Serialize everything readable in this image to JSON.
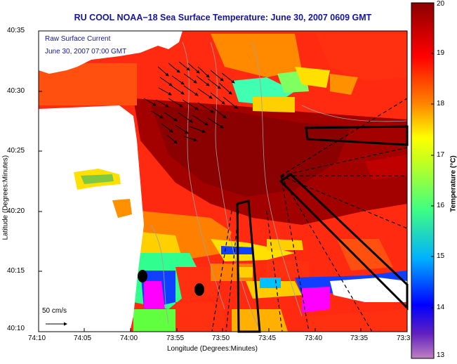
{
  "title": "RU COOL  NOAA−18  Sea Surface Temperature:  June 30, 2007 0609 GMT",
  "current_label_1": "Raw Surface Current",
  "current_label_2": "June 30, 2007 07:00 GMT",
  "scale_label": "50 cm/s",
  "x_axis_label": "Longitude (Degrees:Minutes)",
  "y_axis_label": "Latitude (Degrees:Minutes)",
  "x_ticks": [
    "74:10",
    "74:05",
    "74:00",
    "73:55",
    "73:50",
    "73:45",
    "73:40",
    "73:35",
    "73:3"
  ],
  "y_ticks": [
    "40:35",
    "40:30",
    "40:25",
    "40:20",
    "40:15",
    "40:10"
  ],
  "colorbar": {
    "label": "Temperature (°C)",
    "ticks": [
      "20",
      "19",
      "18",
      "17",
      "16",
      "15",
      "14",
      "13"
    ],
    "min": 13,
    "max": 20
  },
  "colors": {
    "title": "#1414a0",
    "land": "#ffffff",
    "warm": "#8b0000",
    "cool": "#1f3cff"
  }
}
